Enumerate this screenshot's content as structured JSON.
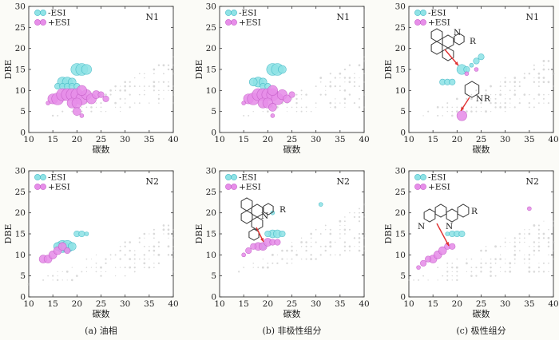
{
  "legend_labels": [
    "-ESI",
    "+ESI"
  ],
  "colors": {
    "neg": "#8fe3e6",
    "neg_stroke": "#3fb7c4",
    "pos": "#e78ee9",
    "pos_stroke": "#c45ec8",
    "gray": "#b9b9b9",
    "arrow": "#e03030"
  },
  "chart_data": [
    {
      "type": "scatter",
      "panel_label": "N1",
      "caption": "",
      "xlabel": "碳数",
      "ylabel": "DBE",
      "xlim": [
        10,
        40
      ],
      "ylim": [
        0,
        30
      ],
      "xticks": [
        10,
        15,
        20,
        25,
        30,
        35,
        40
      ],
      "yticks": [
        0,
        5,
        10,
        15,
        20,
        25,
        30
      ],
      "series": [
        {
          "name": "-ESI",
          "points": [
            [
              20,
              15,
              6
            ],
            [
              21,
              15,
              6
            ],
            [
              22,
              15,
              5
            ],
            [
              17,
              12,
              5
            ],
            [
              18,
              12,
              5
            ],
            [
              19,
              12,
              4
            ],
            [
              16,
              11,
              3
            ],
            [
              17,
              11,
              3
            ],
            [
              18,
              11,
              3
            ],
            [
              19,
              11,
              3
            ],
            [
              20,
              11,
              3
            ]
          ]
        },
        {
          "name": "+ESI",
          "points": [
            [
              15,
              8,
              5
            ],
            [
              16,
              8,
              6
            ],
            [
              17,
              9,
              6
            ],
            [
              18,
              9,
              6
            ],
            [
              19,
              9,
              6
            ],
            [
              20,
              9,
              6
            ],
            [
              21,
              8,
              6
            ],
            [
              22,
              9,
              5
            ],
            [
              23,
              8,
              5
            ],
            [
              24,
              9,
              4
            ],
            [
              19,
              7,
              5
            ],
            [
              20,
              7,
              5
            ],
            [
              21,
              10,
              5
            ],
            [
              20,
              5,
              4
            ],
            [
              25,
              9,
              3
            ],
            [
              26,
              8,
              3
            ],
            [
              21,
              4,
              2
            ],
            [
              14,
              7,
              2
            ]
          ]
        }
      ],
      "background_extent": {
        "cmin": 10,
        "cmax": 40,
        "dmin": 3,
        "dmax": 23,
        "upper_slope": 0.55,
        "upper_intercept": -4,
        "lower_slope": 0.1,
        "lower_intercept": 2
      }
    },
    {
      "type": "scatter",
      "panel_label": "N1",
      "caption": "",
      "xlabel": "碳数",
      "ylabel": "DBE",
      "xlim": [
        10,
        40
      ],
      "ylim": [
        0,
        30
      ],
      "xticks": [
        10,
        15,
        20,
        25,
        30,
        35,
        40
      ],
      "yticks": [
        0,
        5,
        10,
        15,
        20,
        25,
        30
      ],
      "series": [
        {
          "name": "-ESI",
          "points": [
            [
              21,
              15,
              6
            ],
            [
              22,
              15,
              6
            ],
            [
              23,
              15,
              4
            ],
            [
              18,
              12,
              5
            ],
            [
              19,
              12,
              4
            ],
            [
              17,
              12,
              4
            ],
            [
              19,
              11,
              3
            ],
            [
              20,
              11,
              3
            ]
          ]
        },
        {
          "name": "+ESI",
          "points": [
            [
              16,
              8,
              5
            ],
            [
              17,
              8,
              6
            ],
            [
              18,
              9,
              6
            ],
            [
              19,
              9,
              6
            ],
            [
              20,
              9,
              6
            ],
            [
              21,
              9,
              6
            ],
            [
              22,
              8,
              6
            ],
            [
              23,
              9,
              5
            ],
            [
              24,
              8,
              4
            ],
            [
              19,
              7,
              5
            ],
            [
              20,
              7,
              5
            ],
            [
              21,
              10,
              5
            ],
            [
              21,
              6,
              4
            ],
            [
              25,
              9,
              3
            ],
            [
              21,
              4,
              2
            ],
            [
              15,
              7,
              2
            ]
          ]
        }
      ],
      "background_extent": {
        "cmin": 10,
        "cmax": 40,
        "dmin": 3,
        "dmax": 23,
        "upper_slope": 0.55,
        "upper_intercept": -4,
        "lower_slope": 0.1,
        "lower_intercept": 2
      }
    },
    {
      "type": "scatter",
      "panel_label": "N1",
      "caption": "",
      "xlabel": "碳数",
      "ylabel": "DBE",
      "xlim": [
        10,
        40
      ],
      "ylim": [
        0,
        30
      ],
      "xticks": [
        10,
        15,
        20,
        25,
        30,
        35,
        40
      ],
      "yticks": [
        0,
        5,
        10,
        15,
        20,
        25,
        30
      ],
      "series": [
        {
          "name": "-ESI",
          "points": [
            [
              21,
              15,
              5
            ],
            [
              22,
              15,
              3
            ],
            [
              24,
              17,
              3
            ],
            [
              25,
              18,
              3
            ],
            [
              17,
              12,
              3
            ],
            [
              18,
              12,
              3
            ],
            [
              19,
              12,
              3
            ],
            [
              23,
              16,
              2
            ]
          ]
        },
        {
          "name": "+ESI",
          "points": [
            [
              21,
              4,
              5
            ],
            [
              22,
              14,
              2
            ],
            [
              24,
              15,
              2
            ]
          ]
        }
      ],
      "background_extent": {
        "cmin": 13,
        "cmax": 40,
        "dmin": 3,
        "dmax": 22,
        "upper_slope": 0.5,
        "upper_intercept": -2,
        "lower_slope": 0.1,
        "lower_intercept": 2
      }
    },
    {
      "type": "scatter",
      "panel_label": "N2",
      "caption": "(a) 油相",
      "xlabel": "碳数",
      "ylabel": "DBE",
      "xlim": [
        10,
        40
      ],
      "ylim": [
        0,
        30
      ],
      "xticks": [
        10,
        15,
        20,
        25,
        30,
        35,
        40
      ],
      "yticks": [
        0,
        5,
        10,
        15,
        20,
        25,
        30
      ],
      "series": [
        {
          "name": "-ESI",
          "points": [
            [
              17,
              12,
              6
            ],
            [
              18,
              12,
              6
            ],
            [
              16,
              12,
              4
            ],
            [
              19,
              12,
              4
            ],
            [
              20,
              15,
              3
            ],
            [
              21,
              15,
              3
            ],
            [
              22,
              15,
              2
            ]
          ]
        },
        {
          "name": "+ESI",
          "points": [
            [
              13,
              9,
              4
            ],
            [
              14,
              9,
              4
            ],
            [
              15,
              10,
              4
            ],
            [
              16,
              11,
              4
            ],
            [
              17,
              12,
              4
            ],
            [
              18,
              11,
              3
            ]
          ]
        }
      ],
      "background_extent": {
        "cmin": 10,
        "cmax": 40,
        "dmin": 3,
        "dmax": 22,
        "upper_slope": 0.5,
        "upper_intercept": -2,
        "lower_slope": 0.1,
        "lower_intercept": 2
      }
    },
    {
      "type": "scatter",
      "panel_label": "N2",
      "caption": "(b) 非极性组分",
      "xlabel": "碳数",
      "ylabel": "DBE",
      "xlim": [
        10,
        40
      ],
      "ylim": [
        0,
        30
      ],
      "xticks": [
        10,
        15,
        20,
        25,
        30,
        35,
        40
      ],
      "yticks": [
        0,
        5,
        10,
        15,
        20,
        25,
        30
      ],
      "series": [
        {
          "name": "-ESI",
          "points": [
            [
              21,
              15,
              4
            ],
            [
              22,
              15,
              4
            ],
            [
              20,
              15,
              3
            ],
            [
              23,
              15,
              3
            ],
            [
              31,
              22,
              2
            ],
            [
              21,
              20,
              2
            ],
            [
              19,
              12,
              3
            ]
          ]
        },
        {
          "name": "+ESI",
          "points": [
            [
              18,
              12,
              4
            ],
            [
              19,
              12,
              4
            ],
            [
              17,
              12,
              3
            ],
            [
              20,
              13,
              4
            ],
            [
              21,
              13,
              3
            ],
            [
              16,
              11,
              3
            ],
            [
              22,
              13,
              3
            ],
            [
              15,
              10,
              2
            ]
          ]
        }
      ],
      "background_extent": {
        "cmin": 12,
        "cmax": 40,
        "dmin": 5,
        "dmax": 25,
        "upper_slope": 0.6,
        "upper_intercept": -2,
        "lower_slope": 0.2,
        "lower_intercept": 3
      }
    },
    {
      "type": "scatter",
      "panel_label": "N2",
      "caption": "(c) 极性组分",
      "xlabel": "碳数",
      "ylabel": "DBE",
      "xlim": [
        10,
        40
      ],
      "ylim": [
        0,
        30
      ],
      "xticks": [
        10,
        15,
        20,
        25,
        30,
        35,
        40
      ],
      "yticks": [
        0,
        5,
        10,
        15,
        20,
        25,
        30
      ],
      "series": [
        {
          "name": "-ESI",
          "points": [
            [
              19,
              15,
              3
            ],
            [
              20,
              15,
              3
            ],
            [
              21,
              15,
              3
            ],
            [
              18,
              15,
              2
            ]
          ]
        },
        {
          "name": "+ESI",
          "points": [
            [
              15,
              9,
              4
            ],
            [
              16,
              10,
              4
            ],
            [
              17,
              11,
              4
            ],
            [
              18,
              12,
              3
            ],
            [
              14,
              9,
              3
            ],
            [
              13,
              8,
              3
            ],
            [
              12,
              7,
              2
            ],
            [
              35,
              21,
              2
            ],
            [
              19,
              12,
              3
            ]
          ]
        }
      ],
      "background_extent": {
        "cmin": 10,
        "cmax": 40,
        "dmin": 4,
        "dmax": 22,
        "upper_slope": 0.5,
        "upper_intercept": -1,
        "lower_slope": 0.1,
        "lower_intercept": 2
      }
    }
  ]
}
